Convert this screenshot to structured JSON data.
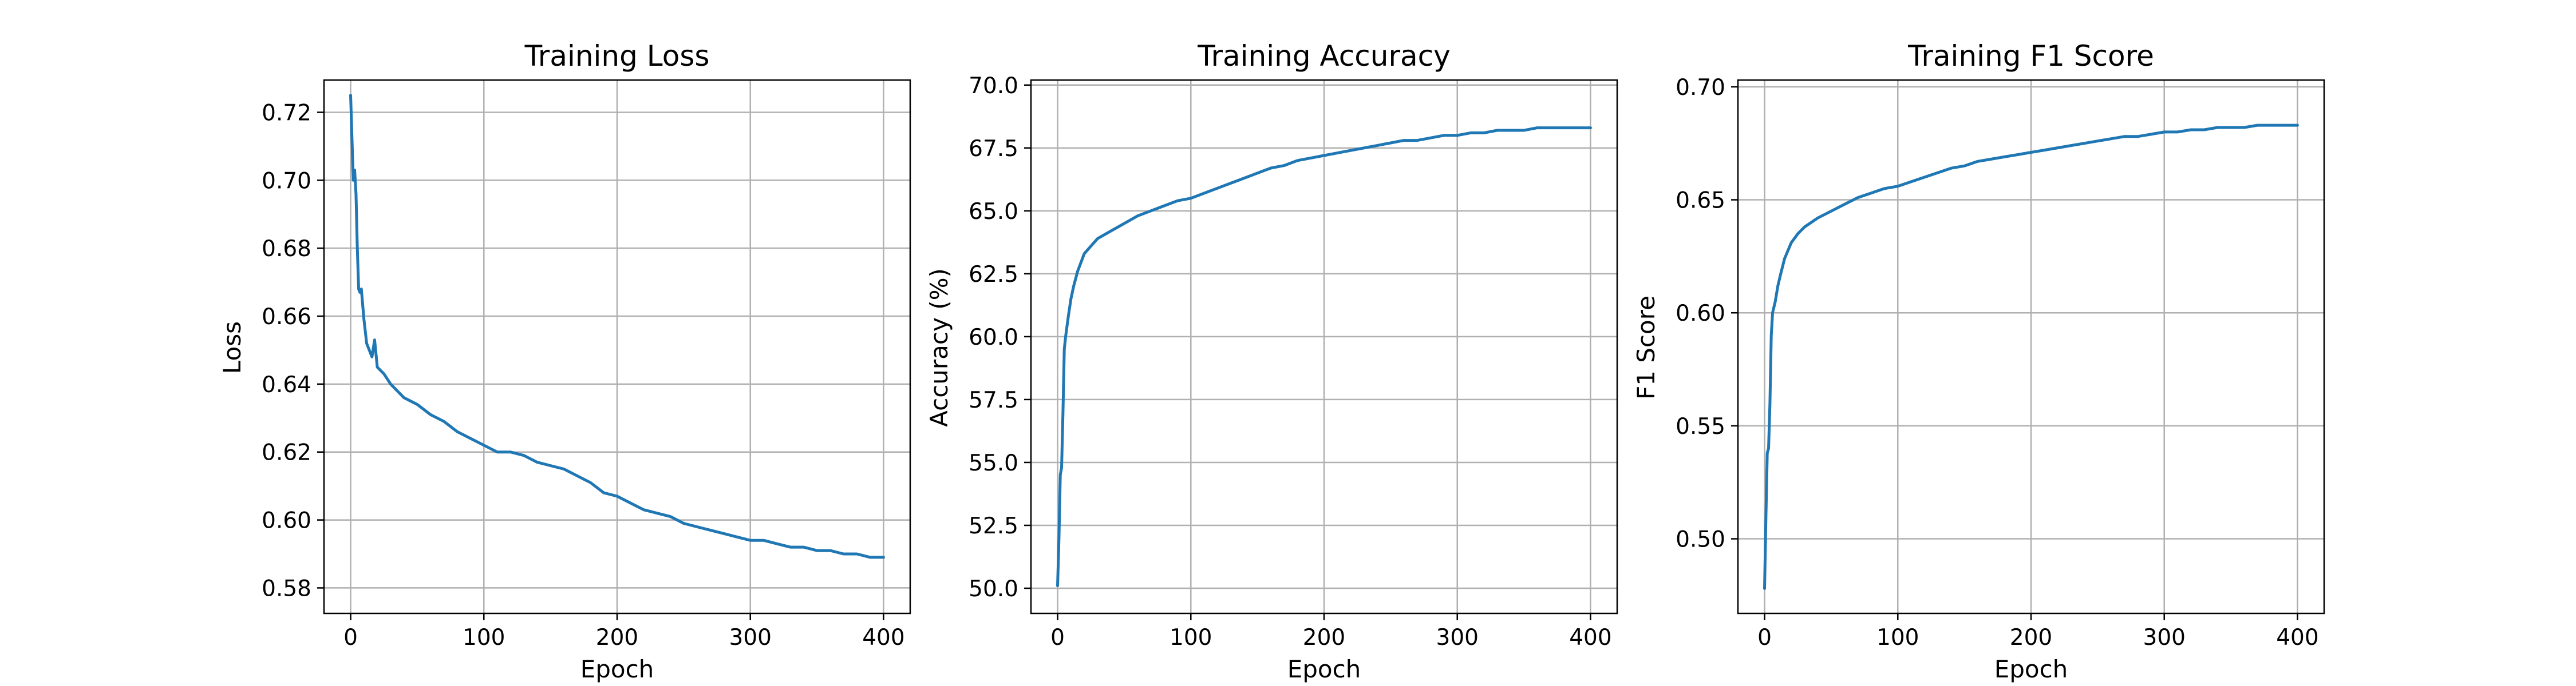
{
  "colors": {
    "line": "#1f77b4",
    "grid": "#b0b0b0",
    "axes": "#000000",
    "background": "#ffffff"
  },
  "chart_data": [
    {
      "type": "line",
      "title": "Training Loss",
      "xlabel": "Epoch",
      "ylabel": "Loss",
      "xlim": [
        -20,
        420
      ],
      "ylim": [
        0.5725,
        0.7295
      ],
      "xticks": [
        0,
        100,
        200,
        300,
        400
      ],
      "yticks": [
        0.58,
        0.6,
        0.62,
        0.64,
        0.66,
        0.68,
        0.7,
        0.72
      ],
      "ytick_decimals": 2,
      "grid": true,
      "legend": "none",
      "series": [
        {
          "x": [
            0,
            1,
            2,
            3,
            4,
            5,
            6,
            7,
            8,
            10,
            12,
            14,
            16,
            18,
            20,
            25,
            30,
            40,
            50,
            60,
            70,
            80,
            90,
            100,
            110,
            120,
            130,
            140,
            150,
            160,
            170,
            180,
            190,
            200,
            210,
            220,
            230,
            240,
            250,
            260,
            270,
            280,
            290,
            300,
            310,
            320,
            330,
            340,
            350,
            360,
            370,
            380,
            390,
            400
          ],
          "y": [
            0.725,
            0.712,
            0.7,
            0.703,
            0.696,
            0.68,
            0.668,
            0.667,
            0.668,
            0.659,
            0.652,
            0.65,
            0.648,
            0.653,
            0.645,
            0.643,
            0.64,
            0.636,
            0.634,
            0.631,
            0.629,
            0.626,
            0.624,
            0.622,
            0.62,
            0.62,
            0.619,
            0.617,
            0.616,
            0.615,
            0.613,
            0.611,
            0.608,
            0.607,
            0.605,
            0.603,
            0.602,
            0.601,
            0.599,
            0.598,
            0.597,
            0.596,
            0.595,
            0.594,
            0.594,
            0.593,
            0.592,
            0.592,
            0.591,
            0.591,
            0.59,
            0.59,
            0.589,
            0.589
          ]
        }
      ]
    },
    {
      "type": "line",
      "title": "Training Accuracy",
      "xlabel": "Epoch",
      "ylabel": "Accuracy (%)",
      "xlim": [
        -20,
        420
      ],
      "ylim": [
        49.0,
        70.2
      ],
      "xticks": [
        0,
        100,
        200,
        300,
        400
      ],
      "yticks": [
        50.0,
        52.5,
        55.0,
        57.5,
        60.0,
        62.5,
        65.0,
        67.5,
        70.0
      ],
      "ytick_decimals": 1,
      "grid": true,
      "legend": "none",
      "series": [
        {
          "x": [
            0,
            1,
            2,
            3,
            4,
            5,
            6,
            8,
            10,
            12,
            15,
            20,
            25,
            30,
            40,
            50,
            60,
            70,
            80,
            90,
            100,
            110,
            120,
            130,
            140,
            150,
            160,
            170,
            180,
            190,
            200,
            210,
            220,
            230,
            240,
            250,
            260,
            270,
            280,
            290,
            300,
            310,
            320,
            330,
            340,
            350,
            360,
            370,
            380,
            390,
            400
          ],
          "y": [
            50.1,
            52.0,
            54.5,
            54.8,
            57.0,
            59.5,
            60.0,
            60.8,
            61.5,
            62.0,
            62.6,
            63.3,
            63.6,
            63.9,
            64.2,
            64.5,
            64.8,
            65.0,
            65.2,
            65.4,
            65.5,
            65.7,
            65.9,
            66.1,
            66.3,
            66.5,
            66.7,
            66.8,
            67.0,
            67.1,
            67.2,
            67.3,
            67.4,
            67.5,
            67.6,
            67.7,
            67.8,
            67.8,
            67.9,
            68.0,
            68.0,
            68.1,
            68.1,
            68.2,
            68.2,
            68.2,
            68.3,
            68.3,
            68.3,
            68.3,
            68.3
          ]
        }
      ]
    },
    {
      "type": "line",
      "title": "Training F1 Score",
      "xlabel": "Epoch",
      "ylabel": "F1 Score",
      "xlim": [
        -20,
        420
      ],
      "ylim": [
        0.467,
        0.703
      ],
      "xticks": [
        0,
        100,
        200,
        300,
        400
      ],
      "yticks": [
        0.5,
        0.55,
        0.6,
        0.65,
        0.7
      ],
      "ytick_decimals": 2,
      "grid": true,
      "legend": "none",
      "series": [
        {
          "x": [
            0,
            1,
            2,
            3,
            4,
            5,
            6,
            8,
            10,
            12,
            15,
            20,
            25,
            30,
            40,
            50,
            60,
            70,
            80,
            90,
            100,
            110,
            120,
            130,
            140,
            150,
            160,
            170,
            180,
            190,
            200,
            210,
            220,
            230,
            240,
            250,
            260,
            270,
            280,
            290,
            300,
            310,
            320,
            330,
            340,
            350,
            360,
            370,
            380,
            390,
            400
          ],
          "y": [
            0.478,
            0.51,
            0.538,
            0.54,
            0.56,
            0.59,
            0.6,
            0.605,
            0.612,
            0.617,
            0.624,
            0.631,
            0.635,
            0.638,
            0.642,
            0.645,
            0.648,
            0.651,
            0.653,
            0.655,
            0.656,
            0.658,
            0.66,
            0.662,
            0.664,
            0.665,
            0.667,
            0.668,
            0.669,
            0.67,
            0.671,
            0.672,
            0.673,
            0.674,
            0.675,
            0.676,
            0.677,
            0.678,
            0.678,
            0.679,
            0.68,
            0.68,
            0.681,
            0.681,
            0.682,
            0.682,
            0.682,
            0.683,
            0.683,
            0.683,
            0.683
          ]
        }
      ]
    }
  ]
}
